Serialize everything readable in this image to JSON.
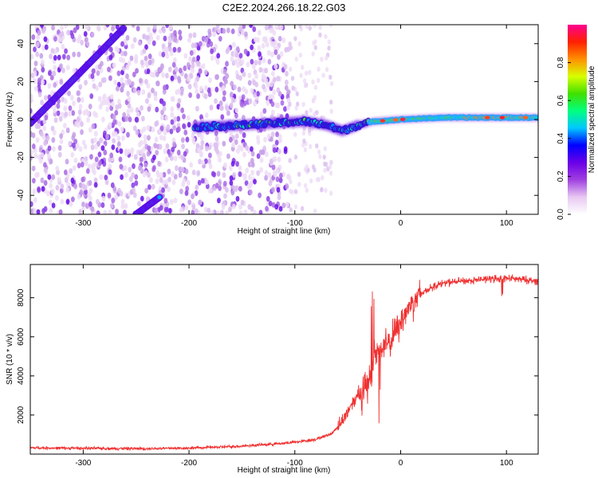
{
  "title": "C2E2.2024.266.18.22.G03",
  "chart_data": [
    {
      "type": "heatmap",
      "name": "spectrogram",
      "xlabel": "Height of straight line (km)",
      "ylabel": "Frequency (Hz)",
      "xlim": [
        -350,
        130
      ],
      "ylim": [
        -50,
        50
      ],
      "xticks": [
        -300,
        -200,
        -100,
        0,
        100
      ],
      "yticks": [
        -40,
        -20,
        0,
        20,
        40
      ],
      "features": {
        "dense_noise_region_km": [
          -350,
          -105
        ],
        "sparse_noise_region_km": [
          -105,
          -65
        ],
        "central_band_start_km": -195,
        "upper_diagonal_track": [
          [
            -350,
            -2
          ],
          [
            -262,
            48
          ]
        ],
        "lower_diagonal_track": [
          [
            -250,
            -50
          ],
          [
            -228,
            -41
          ]
        ],
        "central_band_trace": [
          [
            -195,
            -4
          ],
          [
            -150,
            -3
          ],
          [
            -120,
            -2
          ],
          [
            -90,
            -1
          ],
          [
            -70,
            -3
          ],
          [
            -55,
            -6
          ],
          [
            -40,
            -3
          ],
          [
            -25,
            -1
          ],
          [
            0,
            0
          ],
          [
            40,
            1
          ],
          [
            80,
            1
          ],
          [
            130,
            1
          ]
        ]
      },
      "colorbar": {
        "label": "Normalized spectral amplitude",
        "ticks": [
          "0.0",
          "0.2",
          "0.4",
          "0.6",
          "0.8"
        ],
        "stops": [
          "#ffffff",
          "#e8c8f2",
          "#a040e0",
          "#6a00e8",
          "#0000ff",
          "#00c8ff",
          "#00ff80",
          "#40e000",
          "#d8ff00",
          "#ff9000",
          "#ff2000",
          "#ff0090"
        ]
      }
    },
    {
      "type": "line",
      "name": "snr",
      "xlabel": "Height of straight line (km)",
      "ylabel": "SNR (10 * v/v)",
      "xlim": [
        -350,
        130
      ],
      "ylim": [
        0,
        9700
      ],
      "xticks": [
        -300,
        -200,
        -100,
        0,
        100
      ],
      "yticks": [
        2000,
        4000,
        6000,
        8000
      ],
      "color": "#f03030",
      "series": [
        {
          "name": "SNR",
          "x": [
            -350,
            -300,
            -250,
            -200,
            -160,
            -130,
            -110,
            -95,
            -80,
            -65,
            -55,
            -45,
            -38,
            -30,
            -25,
            -20,
            -10,
            0,
            10,
            20,
            30,
            40,
            60,
            80,
            100,
            120,
            130
          ],
          "y": [
            320,
            300,
            280,
            310,
            380,
            480,
            560,
            640,
            760,
            1050,
            1700,
            2700,
            3200,
            3400,
            5200,
            5300,
            5700,
            6800,
            7700,
            8250,
            8550,
            8750,
            8850,
            8950,
            9000,
            8900,
            8850
          ]
        }
      ]
    }
  ]
}
